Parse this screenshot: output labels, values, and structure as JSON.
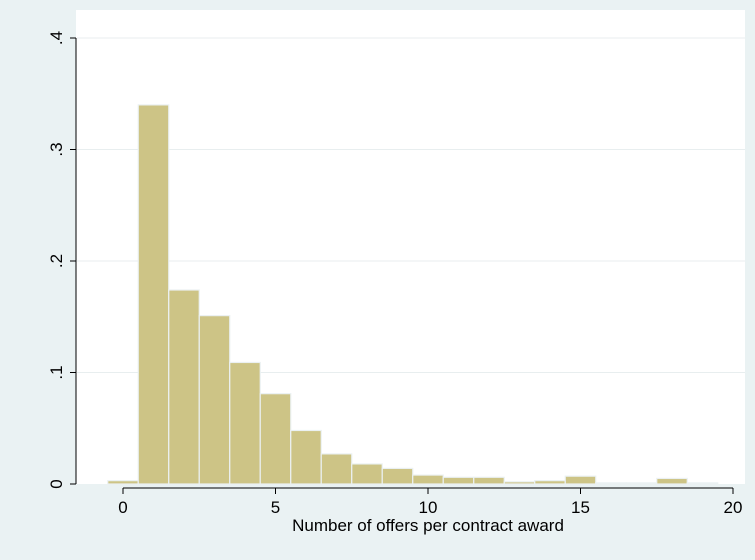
{
  "chart_data": {
    "type": "bar",
    "subtype": "histogram",
    "xlabel": "Number of offers per contract award",
    "ylabel": "",
    "xlim": [
      -1,
      20
    ],
    "ylim": [
      0,
      0.4
    ],
    "bin_width": 1,
    "x_ticks": [
      0,
      5,
      10,
      15,
      20
    ],
    "x_tick_labels": [
      "0",
      "5",
      "10",
      "15",
      "20"
    ],
    "y_ticks": [
      0,
      0.1,
      0.2,
      0.3,
      0.4
    ],
    "y_tick_labels": [
      "0",
      ".1",
      ".2",
      ".3",
      ".4"
    ],
    "grid": true,
    "bins": [
      {
        "start": -0.5,
        "end": 0.5,
        "value": 0.003
      },
      {
        "start": 0.5,
        "end": 1.5,
        "value": 0.34
      },
      {
        "start": 1.5,
        "end": 2.5,
        "value": 0.174
      },
      {
        "start": 2.5,
        "end": 3.5,
        "value": 0.151
      },
      {
        "start": 3.5,
        "end": 4.5,
        "value": 0.109
      },
      {
        "start": 4.5,
        "end": 5.5,
        "value": 0.081
      },
      {
        "start": 5.5,
        "end": 6.5,
        "value": 0.048
      },
      {
        "start": 6.5,
        "end": 7.5,
        "value": 0.027
      },
      {
        "start": 7.5,
        "end": 8.5,
        "value": 0.018
      },
      {
        "start": 8.5,
        "end": 9.5,
        "value": 0.014
      },
      {
        "start": 9.5,
        "end": 10.5,
        "value": 0.008
      },
      {
        "start": 10.5,
        "end": 11.5,
        "value": 0.006
      },
      {
        "start": 11.5,
        "end": 12.5,
        "value": 0.006
      },
      {
        "start": 12.5,
        "end": 13.5,
        "value": 0.002
      },
      {
        "start": 13.5,
        "end": 14.5,
        "value": 0.003
      },
      {
        "start": 14.5,
        "end": 15.5,
        "value": 0.007
      },
      {
        "start": 15.5,
        "end": 16.5,
        "value": 0.001
      },
      {
        "start": 16.5,
        "end": 17.5,
        "value": 0.001
      },
      {
        "start": 17.5,
        "end": 18.5,
        "value": 0.005
      },
      {
        "start": 18.5,
        "end": 19.5,
        "value": 0.001
      }
    ],
    "colors": {
      "bar_fill": "#cdc486",
      "bar_stroke": "#ebf1f2",
      "plot_background": "#ffffff",
      "page_background": "#eaf2f3",
      "grid": "#e8eeef",
      "axis": "#000000"
    }
  }
}
